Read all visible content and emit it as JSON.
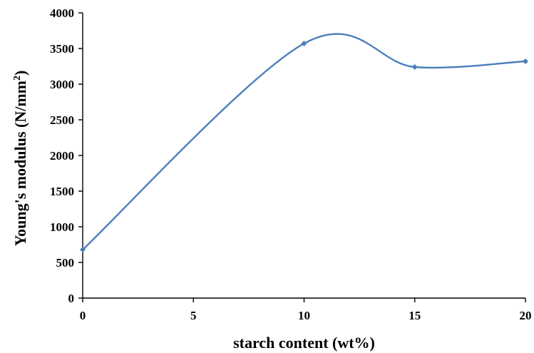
{
  "chart_data": {
    "type": "line",
    "smooth": true,
    "x": [
      0,
      10,
      15,
      20
    ],
    "series": [
      {
        "values": [
          680,
          3570,
          3240,
          3320
        ],
        "color": "#4a7ebb",
        "marker": "diamond"
      }
    ],
    "xlabel": "starch content (wt%)",
    "ylabel_main": "Young's modulus (N/mm",
    "ylabel_sup": "2",
    "ylabel_end": ")",
    "xlim": [
      0,
      20
    ],
    "ylim": [
      0,
      4000
    ],
    "xticks": [
      "0",
      "5",
      "10",
      "15",
      "20"
    ],
    "yticks": [
      "0",
      "500",
      "1000",
      "1500",
      "2000",
      "2500",
      "3000",
      "3500",
      "4000"
    ],
    "grid": false,
    "legend": "none"
  }
}
